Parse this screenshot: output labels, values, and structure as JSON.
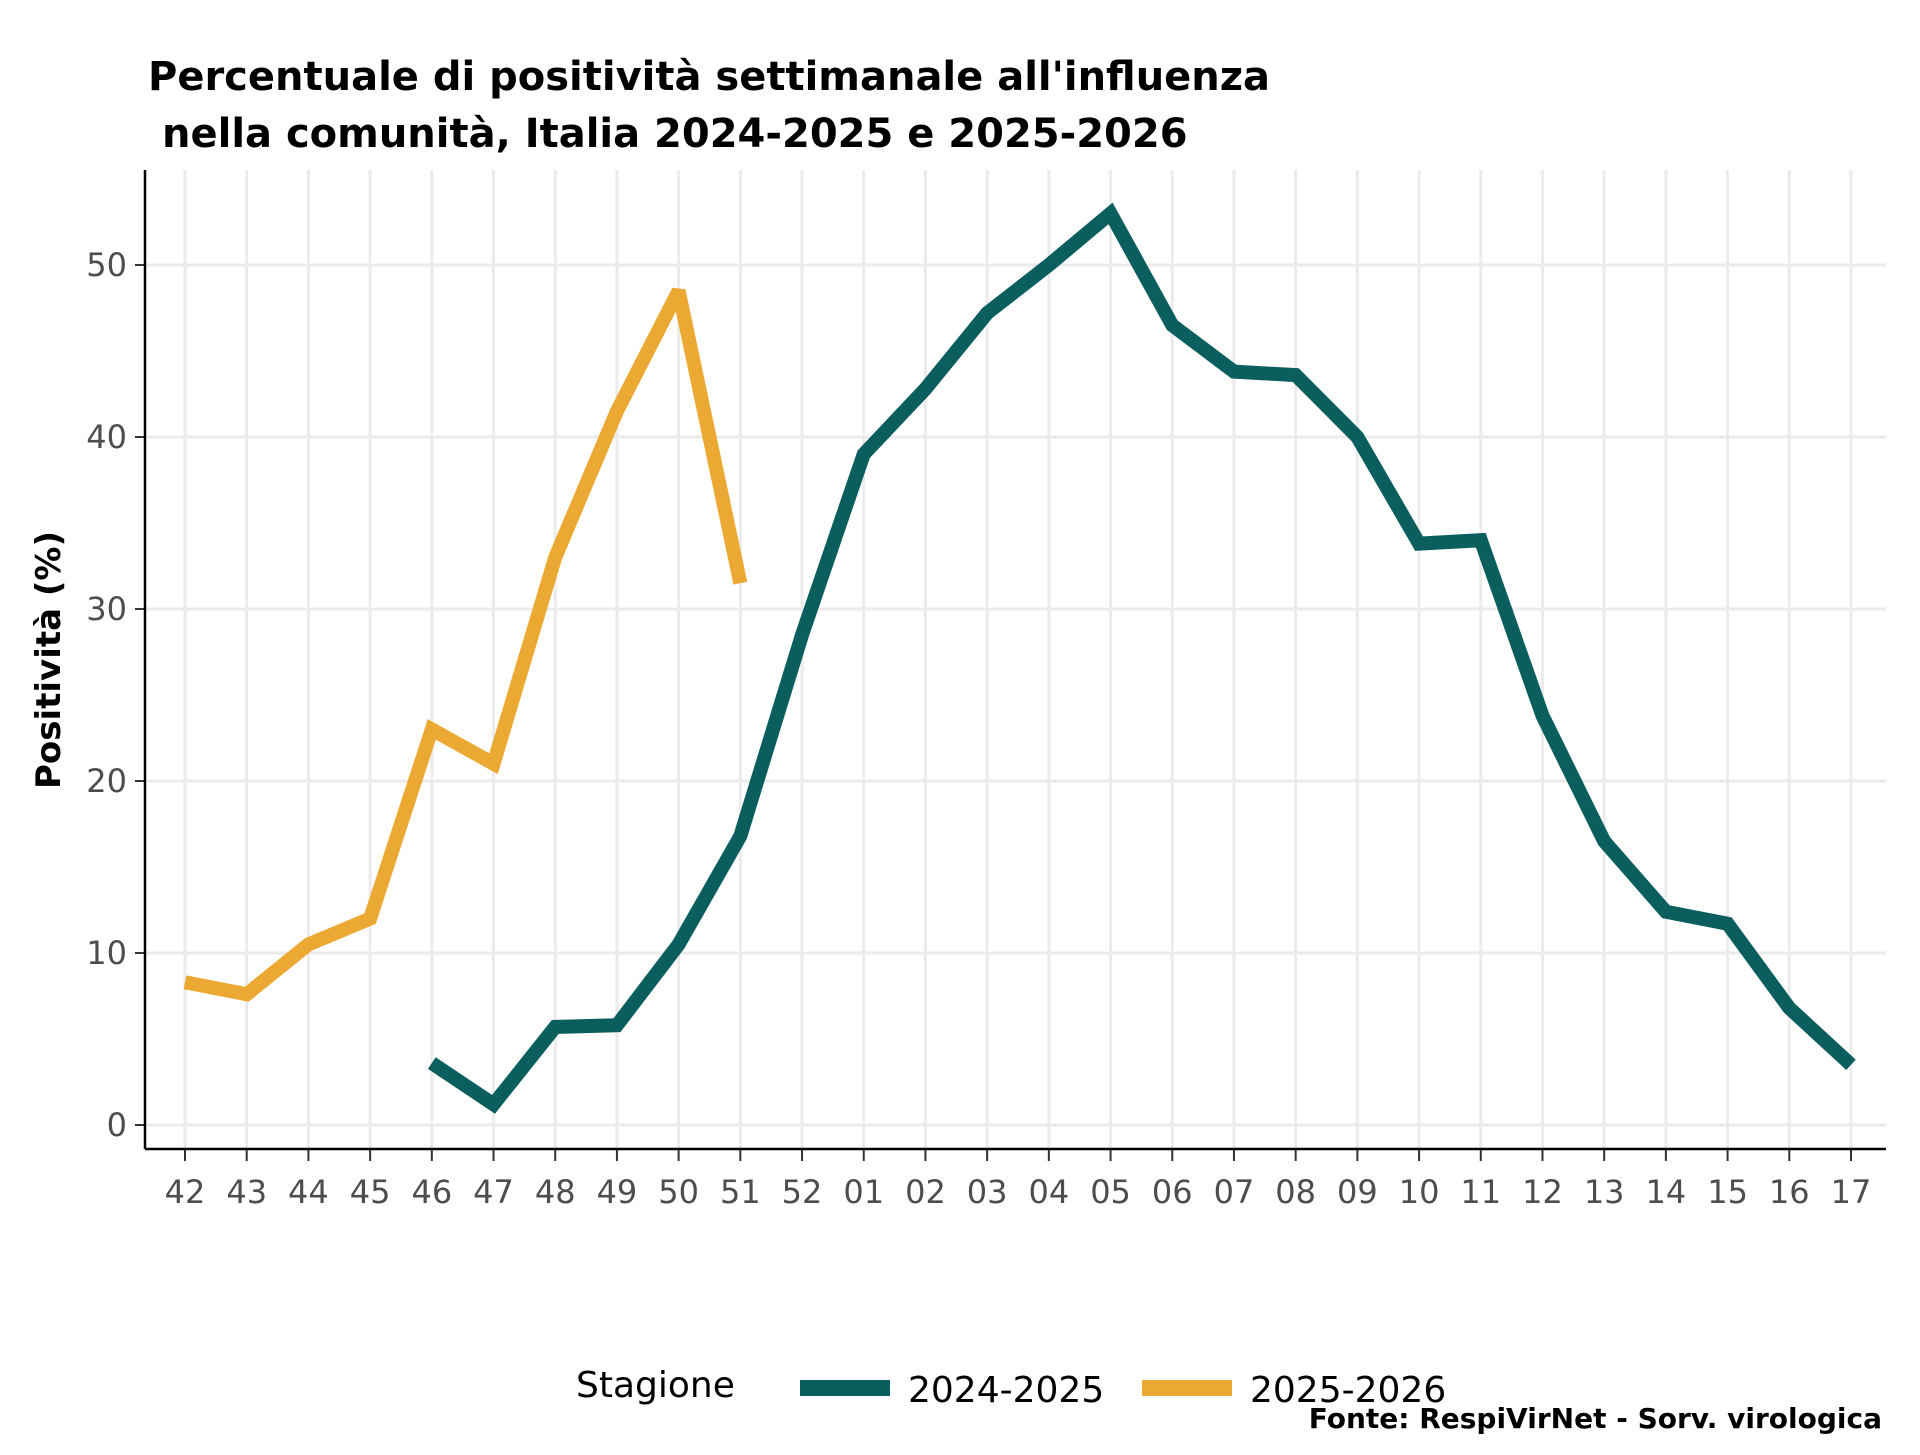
{
  "chart_data": {
    "type": "line",
    "title_line1": "Percentuale di positività settimanale all'influenza",
    "title_line2": "nella comunità, Italia 2024-2025 e 2025-2026",
    "xlabel": "",
    "ylabel": "Positività (%)",
    "categories": [
      "42",
      "43",
      "44",
      "45",
      "46",
      "47",
      "48",
      "49",
      "50",
      "51",
      "52",
      "01",
      "02",
      "03",
      "04",
      "05",
      "06",
      "07",
      "08",
      "09",
      "10",
      "11",
      "12",
      "13",
      "14",
      "15",
      "16",
      "17"
    ],
    "yticks": [
      0,
      10,
      20,
      30,
      40,
      50
    ],
    "ylim": [
      -1.5,
      55.5
    ],
    "grid": true,
    "legend_title": "Stagione",
    "legend_position": "bottom",
    "source": "Fonte: RespiVirNet - Sorv. virologica",
    "series": [
      {
        "name": "2024-2025",
        "color": "#0b5e5e",
        "values": [
          null,
          null,
          null,
          null,
          3.6,
          1.2,
          5.7,
          5.8,
          10.5,
          16.8,
          28.5,
          39,
          42.8,
          47.2,
          50,
          53,
          46.5,
          43.8,
          43.6,
          40,
          33.8,
          34,
          23.8,
          16.5,
          12.4,
          11.7,
          6.8,
          3.5
        ]
      },
      {
        "name": "2025-2026",
        "color": "#eba832",
        "values": [
          8.3,
          7.6,
          10.5,
          12,
          23,
          21,
          33,
          41.5,
          48.5,
          31.5,
          null,
          null,
          null,
          null,
          null,
          null,
          null,
          null,
          null,
          null,
          null,
          null,
          null,
          null,
          null,
          null,
          null,
          null
        ]
      }
    ]
  }
}
